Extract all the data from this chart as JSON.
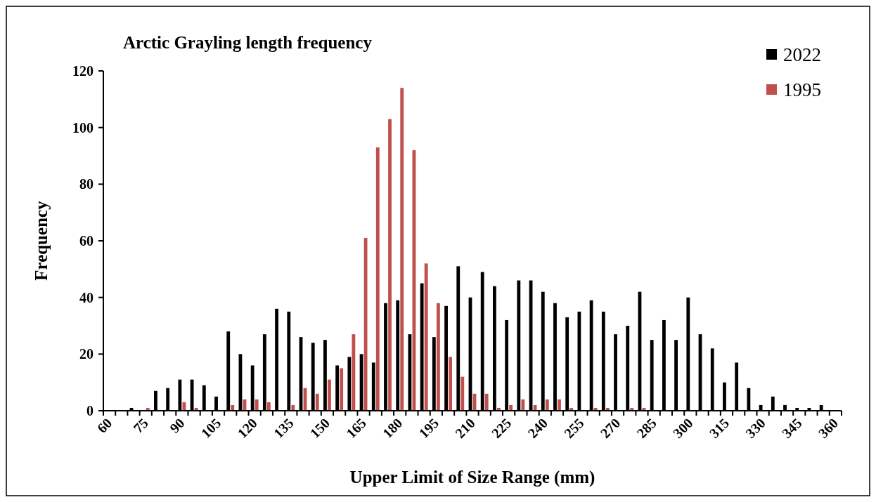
{
  "chart_data": {
    "type": "bar",
    "title": "Arctic Grayling length frequency",
    "xlabel": "Upper Limit of Size Range (mm)",
    "ylabel": "Frequency",
    "categories": [
      "60",
      null,
      null,
      "75",
      null,
      null,
      "90",
      null,
      null,
      "105",
      null,
      null,
      "120",
      null,
      null,
      "135",
      null,
      null,
      "150",
      null,
      null,
      "165",
      null,
      null,
      "180",
      null,
      null,
      "195",
      null,
      null,
      "210",
      null,
      null,
      "225",
      null,
      null,
      "240",
      null,
      null,
      "255",
      null,
      null,
      "270",
      null,
      null,
      "285",
      null,
      null,
      "300",
      null,
      null,
      "315",
      null,
      null,
      "330",
      null,
      null,
      "345",
      null,
      null,
      "360"
    ],
    "series": [
      {
        "name": "2022",
        "color": "#000000",
        "values": [
          0,
          0,
          1,
          0,
          7,
          8,
          11,
          11,
          9,
          5,
          28,
          20,
          16,
          27,
          36,
          35,
          26,
          24,
          25,
          16,
          19,
          20,
          17,
          38,
          39,
          27,
          45,
          26,
          37,
          51,
          40,
          49,
          44,
          32,
          46,
          46,
          42,
          38,
          33,
          35,
          39,
          35,
          27,
          30,
          42,
          25,
          32,
          25,
          40,
          27,
          22,
          10,
          17,
          8,
          2,
          5,
          2,
          1,
          1,
          2,
          0
        ]
      },
      {
        "name": "1995",
        "color": "#c0504d",
        "values": [
          0,
          0,
          0,
          1,
          0,
          0,
          3,
          1,
          0,
          0,
          2,
          4,
          4,
          3,
          0,
          2,
          8,
          6,
          11,
          15,
          27,
          61,
          93,
          103,
          114,
          92,
          52,
          38,
          19,
          12,
          6,
          6,
          1,
          2,
          4,
          2,
          4,
          4,
          1,
          0,
          1,
          1,
          0,
          1,
          1,
          0,
          0,
          0,
          0,
          0,
          0,
          0,
          0,
          0,
          0,
          0,
          0,
          0,
          0,
          0,
          0
        ]
      }
    ],
    "ylim": [
      0,
      120
    ],
    "yticks": [
      0,
      20,
      40,
      60,
      80,
      100,
      120
    ],
    "grid": false,
    "legend": "top right"
  }
}
